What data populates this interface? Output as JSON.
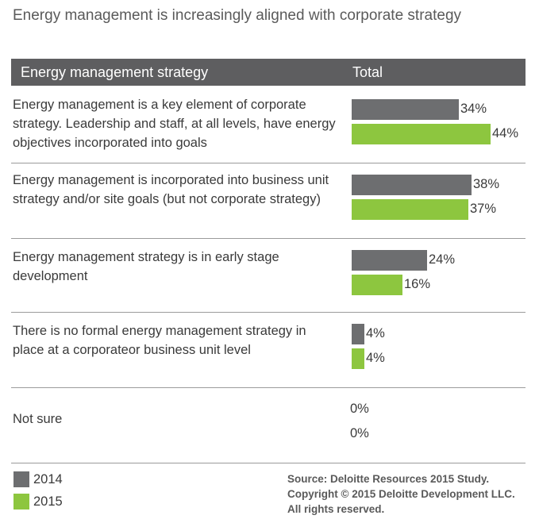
{
  "title": "Energy management is increasingly aligned with corporate strategy",
  "header": {
    "left": "Energy management strategy",
    "right": "Total"
  },
  "legend": [
    {
      "name": "2014",
      "color": "#6d6e70"
    },
    {
      "name": "2015",
      "color": "#8dc63f"
    }
  ],
  "source": [
    "Source: Deloitte Resources 2015 Study.",
    "Copyright © 2015 Deloitte Development LLC.",
    "All rights reserved."
  ],
  "chart_data": {
    "type": "bar",
    "orientation": "horizontal",
    "categories": [
      "Energy management is a key element of corporate strategy. Leadership and staff, at all levels, have energy objectives incorporated into goals",
      "Energy management is incorporated into business unit strategy and/or site goals (but not corporate strategy)",
      "Energy management strategy is in early stage development",
      "There is no formal energy management strategy in place at a corporateor business unit level",
      "Not sure"
    ],
    "series": [
      {
        "name": "2014",
        "values": [
          34,
          38,
          24,
          4,
          0
        ],
        "labels": [
          "34%",
          "38%",
          "24%",
          "4%",
          "0%"
        ],
        "color": "#6d6e70"
      },
      {
        "name": "2015",
        "values": [
          44,
          37,
          16,
          4,
          0
        ],
        "labels": [
          "44%",
          "37%",
          "16%",
          "4%",
          "0%"
        ],
        "color": "#8dc63f"
      }
    ],
    "xlim": [
      0,
      44
    ],
    "grid": false,
    "legend_position": "bottom-left"
  }
}
